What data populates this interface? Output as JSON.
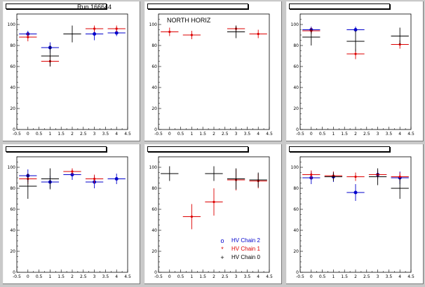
{
  "colors": {
    "chain2": "#0000cc",
    "chain1": "#dd0000",
    "chain0": "#000000",
    "axis": "#000000",
    "pad": "#ffffff",
    "canvas": "#c9c9c9"
  },
  "legend": [
    {
      "label": "HV Chain 2",
      "symbol": "o",
      "color": "#0000cc"
    },
    {
      "label": "HV Chain 1",
      "symbol": "*",
      "color": "#dd0000"
    },
    {
      "label": "HV Chain 0",
      "symbol": "+",
      "color": "#000000"
    }
  ],
  "run_label": "Run 166644",
  "panel_label": "NORTH HORIZ",
  "chart_data": [
    {
      "type": "scatter",
      "title": "",
      "xlim": [
        -0.5,
        4.5
      ],
      "ylim": [
        0,
        110
      ],
      "xticks": [
        "-0.5",
        "0",
        "0.5",
        "1",
        "1.5",
        "2",
        "2.5",
        "3",
        "3.5",
        "4",
        "4.5"
      ],
      "yticks": [
        "0",
        "20",
        "40",
        "60",
        "80",
        "100"
      ],
      "series": [
        {
          "color": "chain2",
          "points": [
            [
              0,
              91,
              3
            ],
            [
              1,
              78,
              5
            ],
            [
              3,
              91,
              6
            ],
            [
              4,
              92,
              3
            ]
          ]
        },
        {
          "color": "chain1",
          "points": [
            [
              0,
              88,
              4
            ],
            [
              1,
              65,
              5
            ],
            [
              3,
              96,
              3
            ],
            [
              4,
              96,
              3
            ]
          ]
        },
        {
          "color": "chain0",
          "points": [
            [
              1,
              70,
              10
            ],
            [
              2,
              91,
              8
            ]
          ]
        }
      ]
    },
    {
      "type": "scatter",
      "title": "",
      "xlim": [
        -0.5,
        4.5
      ],
      "ylim": [
        0,
        110
      ],
      "xticks": [
        "-0.5",
        "0",
        "0.5",
        "1",
        "1.5",
        "2",
        "2.5",
        "3",
        "3.5",
        "4",
        "4.5"
      ],
      "yticks": [
        "0",
        "20",
        "40",
        "60",
        "80",
        "100"
      ],
      "series": [
        {
          "color": "chain1",
          "points": [
            [
              0,
              93,
              4
            ],
            [
              1,
              90,
              4
            ],
            [
              3,
              96,
              3
            ],
            [
              4,
              91,
              4
            ]
          ]
        },
        {
          "color": "chain0",
          "points": [
            [
              3,
              93,
              6
            ]
          ]
        }
      ]
    },
    {
      "type": "scatter",
      "title": "",
      "xlim": [
        -0.5,
        4.5
      ],
      "ylim": [
        0,
        110
      ],
      "xticks": [
        "-0.5",
        "0",
        "0.5",
        "1",
        "1.5",
        "2",
        "2.5",
        "3",
        "3.5",
        "4",
        "4.5"
      ],
      "yticks": [
        "0",
        "20",
        "40",
        "60",
        "80",
        "100"
      ],
      "series": [
        {
          "color": "chain2",
          "points": [
            [
              0,
              95,
              3
            ],
            [
              2,
              95,
              3
            ]
          ]
        },
        {
          "color": "chain1",
          "points": [
            [
              0,
              94,
              3
            ],
            [
              2,
              72,
              5
            ],
            [
              4,
              81,
              4
            ]
          ]
        },
        {
          "color": "chain0",
          "points": [
            [
              0,
              88,
              8
            ],
            [
              2,
              84,
              10
            ],
            [
              4,
              89,
              8
            ]
          ]
        }
      ]
    },
    {
      "type": "scatter",
      "title": "",
      "xlim": [
        -0.5,
        4.5
      ],
      "ylim": [
        0,
        110
      ],
      "xticks": [
        "-0.5",
        "0",
        "0.5",
        "1",
        "1.5",
        "2",
        "2.5",
        "3",
        "3.5",
        "4",
        "4.5"
      ],
      "yticks": [
        "0",
        "20",
        "40",
        "60",
        "80",
        "100"
      ],
      "series": [
        {
          "color": "chain2",
          "points": [
            [
              0,
              92,
              6
            ],
            [
              1,
              86,
              6
            ],
            [
              2,
              93,
              5
            ],
            [
              3,
              86,
              6
            ],
            [
              4,
              89,
              5
            ]
          ]
        },
        {
          "color": "chain1",
          "points": [
            [
              0,
              89,
              5
            ],
            [
              2,
              96,
              3
            ],
            [
              3,
              89,
              4
            ]
          ]
        },
        {
          "color": "chain0",
          "points": [
            [
              0,
              82,
              12
            ],
            [
              1,
              89,
              10
            ]
          ]
        }
      ]
    },
    {
      "type": "scatter",
      "title": "",
      "xlim": [
        -0.5,
        4.5
      ],
      "ylim": [
        0,
        110
      ],
      "xticks": [
        "-0.5",
        "0",
        "0.5",
        "1",
        "1.5",
        "2",
        "2.5",
        "3",
        "3.5",
        "4",
        "4.5"
      ],
      "yticks": [
        "0",
        "20",
        "40",
        "60",
        "80",
        "100"
      ],
      "series": [
        {
          "color": "chain1",
          "points": [
            [
              1,
              53,
              12
            ],
            [
              2,
              67,
              13
            ],
            [
              3,
              88,
              10
            ],
            [
              4,
              87,
              7
            ]
          ]
        },
        {
          "color": "chain0",
          "points": [
            [
              0,
              94,
              7
            ],
            [
              2,
              94,
              7
            ],
            [
              3,
              89,
              10
            ],
            [
              4,
              88,
              7
            ]
          ]
        }
      ]
    },
    {
      "type": "scatter",
      "title": "",
      "xlim": [
        -0.5,
        4.5
      ],
      "ylim": [
        0,
        110
      ],
      "xticks": [
        "-0.5",
        "0",
        "0.5",
        "1",
        "1.5",
        "2",
        "2.5",
        "3",
        "3.5",
        "4",
        "4.5"
      ],
      "yticks": [
        "0",
        "20",
        "40",
        "60",
        "80",
        "100"
      ],
      "series": [
        {
          "color": "chain2",
          "points": [
            [
              0,
              90,
              6
            ],
            [
              1,
              91,
              5
            ],
            [
              2,
              76,
              8
            ],
            [
              3,
              93,
              4
            ],
            [
              4,
              90,
              6
            ]
          ]
        },
        {
          "color": "chain1",
          "points": [
            [
              0,
              93,
              4
            ],
            [
              1,
              92,
              4
            ],
            [
              2,
              91,
              4
            ],
            [
              3,
              93,
              4
            ],
            [
              4,
              91,
              4
            ]
          ]
        },
        {
          "color": "chain0",
          "points": [
            [
              1,
              91,
              4
            ],
            [
              3,
              91,
              8
            ],
            [
              4,
              80,
              10
            ]
          ]
        }
      ]
    }
  ]
}
